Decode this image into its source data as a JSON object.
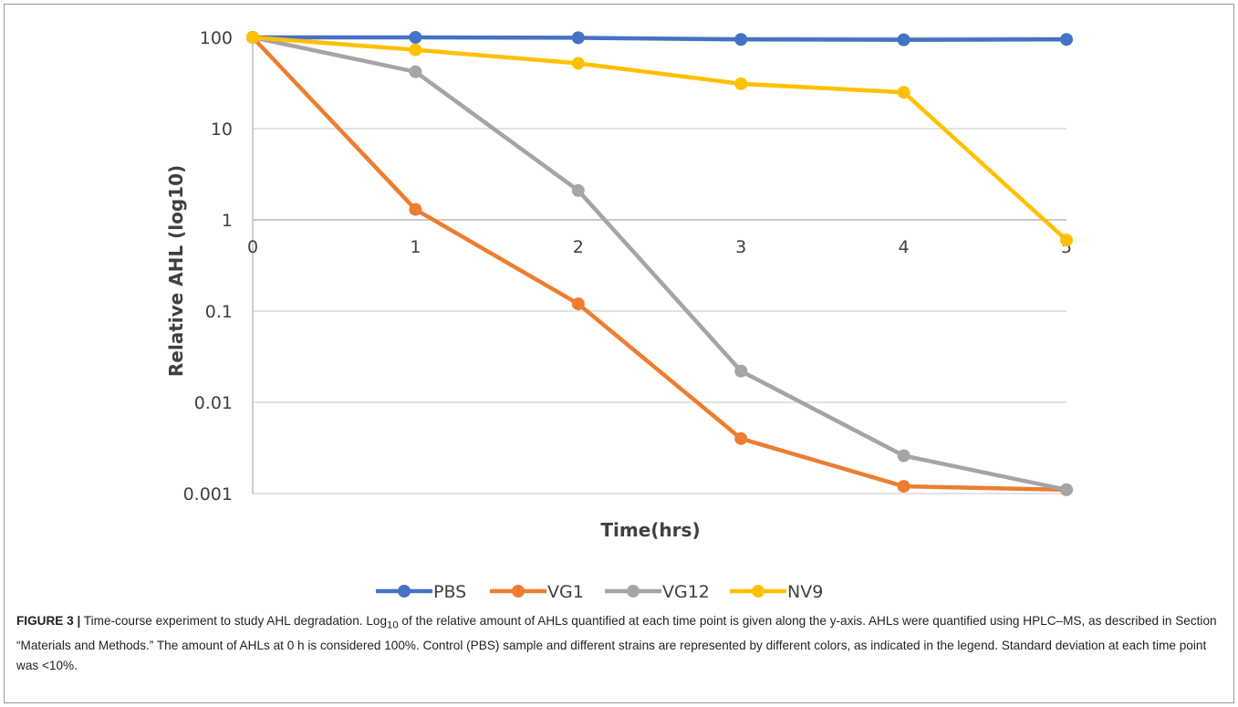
{
  "chart_data": {
    "type": "line",
    "xlabel": "Time(hrs)",
    "ylabel": "Relative AHL (log10)",
    "yscale": "log",
    "ylim": [
      0.001,
      100
    ],
    "xlim": [
      0,
      5
    ],
    "x": [
      0,
      1,
      2,
      3,
      4,
      5
    ],
    "x_tick_labels": [
      "0",
      "1",
      "2",
      "3",
      "4",
      "5"
    ],
    "y_tick_labels": [
      "100",
      "10",
      "1",
      "0.1",
      "0.01",
      "0.001"
    ],
    "y_tick_values": [
      100,
      10,
      1,
      0.1,
      0.01,
      0.001
    ],
    "grid": "horizontal",
    "legend_position": "bottom",
    "series": [
      {
        "name": "PBS",
        "color": "#4472C4",
        "values": [
          100,
          100,
          99,
          95,
          94,
          95
        ]
      },
      {
        "name": "VG1",
        "color": "#ED7D31",
        "values": [
          100,
          1.3,
          0.12,
          0.004,
          0.0012,
          0.0011
        ]
      },
      {
        "name": "VG12",
        "color": "#A5A5A5",
        "values": [
          100,
          42,
          2.1,
          0.022,
          0.0026,
          0.0011
        ]
      },
      {
        "name": "NV9",
        "color": "#FFC000",
        "values": [
          100,
          73,
          52,
          31,
          25,
          0.6
        ]
      }
    ]
  },
  "caption": {
    "label": "FIGURE 3 |",
    "text_before_sub": " Time-course experiment to study AHL degradation. Log",
    "sub": "10",
    "text_after_sub": " of the relative amount of AHLs quantified at each time point is given along the y-axis. AHLs were quantified using HPLC–MS, as described in Section “Materials and Methods.” The amount of AHLs at 0 h is considered 100%. Control (PBS) sample and different strains are represented by different colors, as indicated in the legend. Standard deviation at each time point was <10%."
  }
}
